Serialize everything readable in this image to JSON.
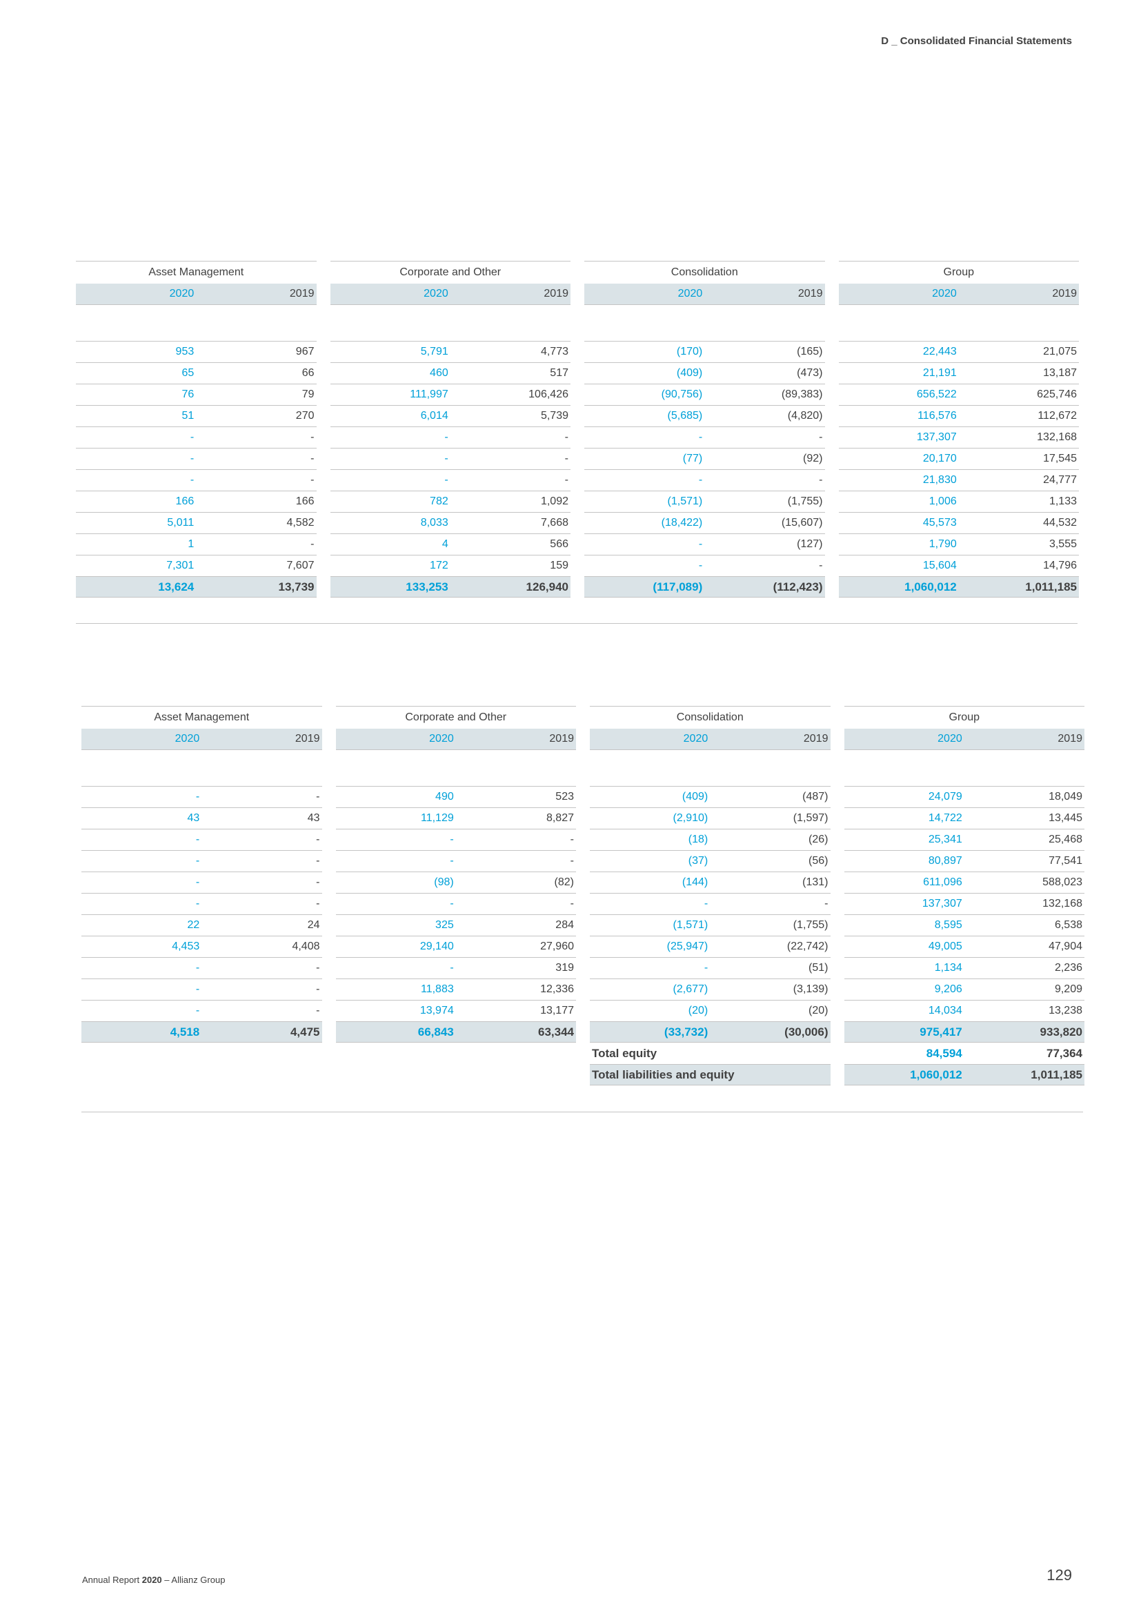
{
  "header": {
    "title": "D _ Consolidated Financial Statements"
  },
  "segments": [
    "Asset Management",
    "Corporate and Other",
    "Consolidation",
    "Group"
  ],
  "years": {
    "current": "2020",
    "prior": "2019"
  },
  "assets_table": {
    "rows": [
      [
        "953",
        "967",
        "5,791",
        "4,773",
        "(170)",
        "(165)",
        "22,443",
        "21,075"
      ],
      [
        "65",
        "66",
        "460",
        "517",
        "(409)",
        "(473)",
        "21,191",
        "13,187"
      ],
      [
        "76",
        "79",
        "111,997",
        "106,426",
        "(90,756)",
        "(89,383)",
        "656,522",
        "625,746"
      ],
      [
        "51",
        "270",
        "6,014",
        "5,739",
        "(5,685)",
        "(4,820)",
        "116,576",
        "112,672"
      ],
      [
        "-",
        "-",
        "-",
        "-",
        "-",
        "-",
        "137,307",
        "132,168"
      ],
      [
        "-",
        "-",
        "-",
        "-",
        "(77)",
        "(92)",
        "20,170",
        "17,545"
      ],
      [
        "-",
        "-",
        "-",
        "-",
        "-",
        "-",
        "21,830",
        "24,777"
      ],
      [
        "166",
        "166",
        "782",
        "1,092",
        "(1,571)",
        "(1,755)",
        "1,006",
        "1,133"
      ],
      [
        "5,011",
        "4,582",
        "8,033",
        "7,668",
        "(18,422)",
        "(15,607)",
        "45,573",
        "44,532"
      ],
      [
        "1",
        "-",
        "4",
        "566",
        "-",
        "(127)",
        "1,790",
        "3,555"
      ],
      [
        "7,301",
        "7,607",
        "172",
        "159",
        "-",
        "-",
        "15,604",
        "14,796"
      ]
    ],
    "total": [
      "13,624",
      "13,739",
      "133,253",
      "126,940",
      "(117,089)",
      "(112,423)",
      "1,060,012",
      "1,011,185"
    ]
  },
  "liabilities_table": {
    "rows": [
      [
        "-",
        "-",
        "490",
        "523",
        "(409)",
        "(487)",
        "24,079",
        "18,049"
      ],
      [
        "43",
        "43",
        "11,129",
        "8,827",
        "(2,910)",
        "(1,597)",
        "14,722",
        "13,445"
      ],
      [
        "-",
        "-",
        "-",
        "-",
        "(18)",
        "(26)",
        "25,341",
        "25,468"
      ],
      [
        "-",
        "-",
        "-",
        "-",
        "(37)",
        "(56)",
        "80,897",
        "77,541"
      ],
      [
        "-",
        "-",
        "(98)",
        "(82)",
        "(144)",
        "(131)",
        "611,096",
        "588,023"
      ],
      [
        "-",
        "-",
        "-",
        "-",
        "-",
        "-",
        "137,307",
        "132,168"
      ],
      [
        "22",
        "24",
        "325",
        "284",
        "(1,571)",
        "(1,755)",
        "8,595",
        "6,538"
      ],
      [
        "4,453",
        "4,408",
        "29,140",
        "27,960",
        "(25,947)",
        "(22,742)",
        "49,005",
        "47,904"
      ],
      [
        "-",
        "-",
        "-",
        "319",
        "-",
        "(51)",
        "1,134",
        "2,236"
      ],
      [
        "-",
        "-",
        "11,883",
        "12,336",
        "(2,677)",
        "(3,139)",
        "9,206",
        "9,209"
      ],
      [
        "-",
        "-",
        "13,974",
        "13,177",
        "(20)",
        "(20)",
        "14,034",
        "13,238"
      ]
    ],
    "total": [
      "4,518",
      "4,475",
      "66,843",
      "63,344",
      "(33,732)",
      "(30,006)",
      "975,417",
      "933,820"
    ],
    "total_equity": {
      "label": "Total equity",
      "current": "84,594",
      "prior": "77,364"
    },
    "total_liabilities_equity": {
      "label": "Total liabilities and equity",
      "current": "1,060,012",
      "prior": "1,011,185"
    }
  },
  "footer": {
    "report_prefix": "Annual Report ",
    "report_year": "2020",
    "report_suffix": " – Allianz Group",
    "page_number": "129"
  }
}
